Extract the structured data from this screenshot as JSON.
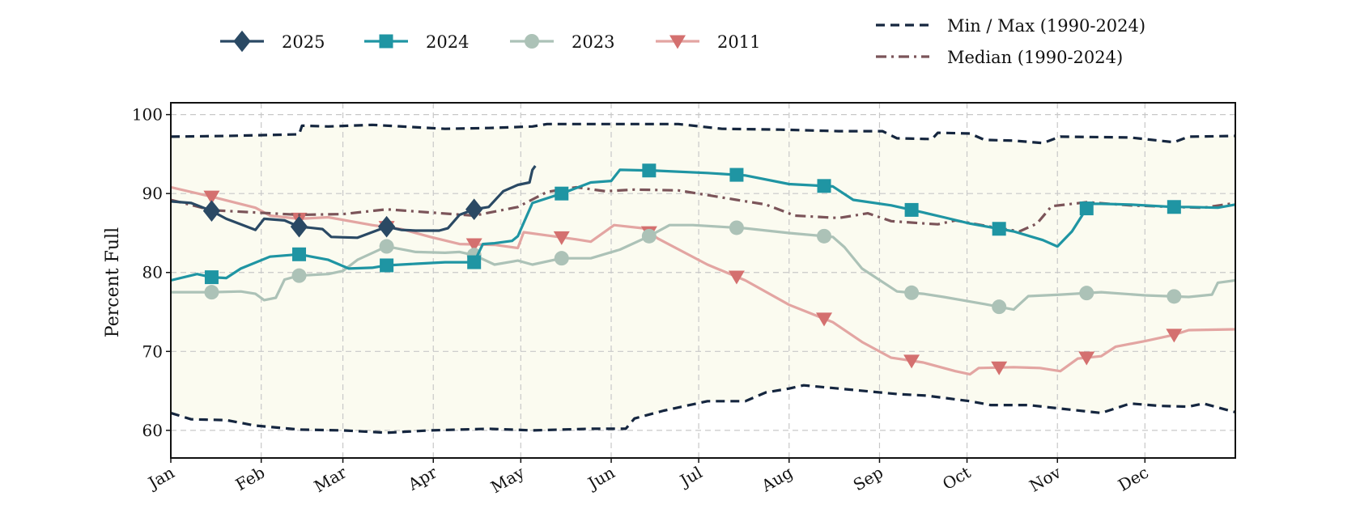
{
  "chart_data": {
    "type": "line",
    "title": "",
    "xlabel": "",
    "ylabel": "Percent Full",
    "ylim": [
      56.5,
      101.5
    ],
    "xlim": [
      1,
      366
    ],
    "grid": true,
    "legend_position": "top",
    "x_ticks": [
      {
        "label": "Jan",
        "x": 1
      },
      {
        "label": "Feb",
        "x": 32
      },
      {
        "label": "Mar",
        "x": 60
      },
      {
        "label": "Apr",
        "x": 91
      },
      {
        "label": "May",
        "x": 121
      },
      {
        "label": "Jun",
        "x": 152
      },
      {
        "label": "Jul",
        "x": 182
      },
      {
        "label": "Aug",
        "x": 213
      },
      {
        "label": "Sep",
        "x": 244
      },
      {
        "label": "Oct",
        "x": 274
      },
      {
        "label": "Nov",
        "x": 305
      },
      {
        "label": "Dec",
        "x": 335
      }
    ],
    "y_ticks": [
      60,
      70,
      80,
      90,
      100
    ],
    "band": {
      "lower_series": "min",
      "upper_series": "max",
      "color": "#fbfbf0"
    },
    "series": [
      {
        "key": "max",
        "name": "Min / Max (1990-2024)",
        "color": "#15263f",
        "style": "dashed",
        "marker": "none",
        "points": [
          [
            1,
            97.2
          ],
          [
            20,
            97.3
          ],
          [
            45,
            97.5
          ],
          [
            46,
            98.6
          ],
          [
            55,
            98.5
          ],
          [
            70,
            98.7
          ],
          [
            95,
            98.2
          ],
          [
            110,
            98.3
          ],
          [
            125,
            98.5
          ],
          [
            130,
            98.8
          ],
          [
            150,
            98.8
          ],
          [
            175,
            98.8
          ],
          [
            190,
            98.2
          ],
          [
            210,
            98.1
          ],
          [
            230,
            97.9
          ],
          [
            245,
            97.9
          ],
          [
            250,
            97.0
          ],
          [
            262,
            96.9
          ],
          [
            264,
            97.7
          ],
          [
            275,
            97.6
          ],
          [
            280,
            96.8
          ],
          [
            290,
            96.7
          ],
          [
            300,
            96.4
          ],
          [
            306,
            97.2
          ],
          [
            330,
            97.1
          ],
          [
            345,
            96.5
          ],
          [
            350,
            97.2
          ],
          [
            366,
            97.3
          ]
        ]
      },
      {
        "key": "min",
        "name": "Min / Max (1990-2024)",
        "color": "#15263f",
        "style": "dashed",
        "marker": "none",
        "points": [
          [
            1,
            62.2
          ],
          [
            8,
            61.4
          ],
          [
            20,
            61.3
          ],
          [
            30,
            60.6
          ],
          [
            45,
            60.1
          ],
          [
            60,
            60.0
          ],
          [
            75,
            59.7
          ],
          [
            90,
            60.0
          ],
          [
            110,
            60.2
          ],
          [
            125,
            60.0
          ],
          [
            145,
            60.2
          ],
          [
            157,
            60.2
          ],
          [
            160,
            61.5
          ],
          [
            170,
            62.5
          ],
          [
            185,
            63.7
          ],
          [
            198,
            63.7
          ],
          [
            205,
            64.8
          ],
          [
            213,
            65.3
          ],
          [
            218,
            65.7
          ],
          [
            230,
            65.3
          ],
          [
            250,
            64.6
          ],
          [
            260,
            64.4
          ],
          [
            275,
            63.7
          ],
          [
            282,
            63.2
          ],
          [
            295,
            63.2
          ],
          [
            310,
            62.6
          ],
          [
            320,
            62.2
          ],
          [
            330,
            63.4
          ],
          [
            340,
            63.1
          ],
          [
            350,
            63.0
          ],
          [
            355,
            63.4
          ],
          [
            366,
            62.3
          ]
        ]
      },
      {
        "key": "median",
        "name": "Median (1990-2024)",
        "color": "#7b5459",
        "style": "dashdot",
        "marker": "none",
        "points": [
          [
            1,
            89.2
          ],
          [
            15,
            87.9
          ],
          [
            30,
            87.6
          ],
          [
            45,
            87.3
          ],
          [
            60,
            87.4
          ],
          [
            75,
            88.0
          ],
          [
            90,
            87.6
          ],
          [
            105,
            87.2
          ],
          [
            120,
            88.3
          ],
          [
            130,
            90.2
          ],
          [
            140,
            90.8
          ],
          [
            150,
            90.3
          ],
          [
            160,
            90.5
          ],
          [
            175,
            90.4
          ],
          [
            185,
            89.8
          ],
          [
            195,
            89.2
          ],
          [
            205,
            88.6
          ],
          [
            215,
            87.2
          ],
          [
            230,
            86.9
          ],
          [
            240,
            87.5
          ],
          [
            248,
            86.5
          ],
          [
            260,
            86.2
          ],
          [
            264,
            86.1
          ],
          [
            270,
            86.6
          ],
          [
            282,
            85.8
          ],
          [
            292,
            85.2
          ],
          [
            298,
            86.2
          ],
          [
            303,
            88.4
          ],
          [
            315,
            88.9
          ],
          [
            330,
            88.5
          ],
          [
            345,
            88.3
          ],
          [
            355,
            88.2
          ],
          [
            366,
            88.8
          ]
        ]
      },
      {
        "key": "s2011",
        "name": "2011",
        "color": "#e3a5a2",
        "marker_color": "#d4706f",
        "style": "solid",
        "marker": "triangle-down",
        "points": [
          [
            1,
            90.8
          ],
          [
            15,
            89.6
          ],
          [
            30,
            88.2
          ],
          [
            35,
            87.2
          ],
          [
            45,
            86.8
          ],
          [
            55,
            87.0
          ],
          [
            70,
            86.0
          ],
          [
            80,
            85.5
          ],
          [
            90,
            84.5
          ],
          [
            100,
            83.6
          ],
          [
            112,
            83.5
          ],
          [
            120,
            83.1
          ],
          [
            122,
            85.1
          ],
          [
            130,
            84.7
          ],
          [
            140,
            84.2
          ],
          [
            145,
            83.9
          ],
          [
            153,
            86.0
          ],
          [
            163,
            85.6
          ],
          [
            168,
            84.3
          ],
          [
            185,
            81.0
          ],
          [
            198,
            79.0
          ],
          [
            213,
            75.9
          ],
          [
            228,
            73.7
          ],
          [
            238,
            71.2
          ],
          [
            248,
            69.2
          ],
          [
            259,
            68.6
          ],
          [
            270,
            67.5
          ],
          [
            275,
            67.1
          ],
          [
            278,
            67.9
          ],
          [
            290,
            68.0
          ],
          [
            299,
            67.9
          ],
          [
            306,
            67.5
          ],
          [
            312,
            69.1
          ],
          [
            320,
            69.4
          ],
          [
            325,
            70.6
          ],
          [
            335,
            71.3
          ],
          [
            345,
            72.1
          ],
          [
            350,
            72.7
          ],
          [
            366,
            72.8
          ]
        ]
      },
      {
        "key": "s2023",
        "name": "2023",
        "color": "#acc2b7",
        "marker_color": "#acc2b7",
        "style": "solid",
        "marker": "circle",
        "points": [
          [
            1,
            77.5
          ],
          [
            15,
            77.5
          ],
          [
            25,
            77.6
          ],
          [
            30,
            77.3
          ],
          [
            33,
            76.5
          ],
          [
            37,
            76.8
          ],
          [
            40,
            79.1
          ],
          [
            45,
            79.6
          ],
          [
            55,
            79.8
          ],
          [
            60,
            80.2
          ],
          [
            65,
            81.6
          ],
          [
            75,
            83.3
          ],
          [
            85,
            82.6
          ],
          [
            95,
            82.5
          ],
          [
            100,
            82.6
          ],
          [
            105,
            82.2
          ],
          [
            112,
            81.0
          ],
          [
            120,
            81.5
          ],
          [
            125,
            81.0
          ],
          [
            135,
            81.8
          ],
          [
            145,
            81.8
          ],
          [
            155,
            82.9
          ],
          [
            165,
            84.6
          ],
          [
            172,
            86.0
          ],
          [
            180,
            86.0
          ],
          [
            198,
            85.6
          ],
          [
            213,
            85.0
          ],
          [
            228,
            84.5
          ],
          [
            232,
            83.2
          ],
          [
            238,
            80.5
          ],
          [
            250,
            77.6
          ],
          [
            259,
            77.3
          ],
          [
            266,
            76.9
          ],
          [
            280,
            76.0
          ],
          [
            290,
            75.3
          ],
          [
            295,
            77.0
          ],
          [
            306,
            77.2
          ],
          [
            320,
            77.5
          ],
          [
            335,
            77.1
          ],
          [
            350,
            76.9
          ],
          [
            358,
            77.2
          ],
          [
            360,
            78.7
          ],
          [
            366,
            79.0
          ]
        ]
      },
      {
        "key": "s2024",
        "name": "2024",
        "color": "#1f95a3",
        "marker_color": "#1f95a3",
        "style": "solid",
        "marker": "square",
        "points": [
          [
            1,
            79.0
          ],
          [
            10,
            79.8
          ],
          [
            15,
            79.4
          ],
          [
            20,
            79.3
          ],
          [
            25,
            80.5
          ],
          [
            35,
            82.0
          ],
          [
            45,
            82.3
          ],
          [
            55,
            81.6
          ],
          [
            62,
            80.5
          ],
          [
            70,
            80.6
          ],
          [
            75,
            80.9
          ],
          [
            85,
            81.1
          ],
          [
            95,
            81.3
          ],
          [
            105,
            81.3
          ],
          [
            108,
            83.6
          ],
          [
            112,
            83.7
          ],
          [
            118,
            84.0
          ],
          [
            120,
            84.6
          ],
          [
            125,
            88.8
          ],
          [
            135,
            90.0
          ],
          [
            145,
            91.4
          ],
          [
            152,
            91.6
          ],
          [
            155,
            93.0
          ],
          [
            167,
            92.9
          ],
          [
            185,
            92.6
          ],
          [
            198,
            92.3
          ],
          [
            213,
            91.2
          ],
          [
            228,
            90.9
          ],
          [
            235,
            89.2
          ],
          [
            248,
            88.5
          ],
          [
            259,
            87.6
          ],
          [
            266,
            87.0
          ],
          [
            275,
            86.2
          ],
          [
            290,
            85.2
          ],
          [
            300,
            84.1
          ],
          [
            305,
            83.3
          ],
          [
            310,
            85.2
          ],
          [
            316,
            88.7
          ],
          [
            320,
            88.7
          ],
          [
            330,
            88.6
          ],
          [
            345,
            88.3
          ],
          [
            350,
            88.3
          ],
          [
            360,
            88.2
          ],
          [
            366,
            88.6
          ]
        ]
      },
      {
        "key": "s2025",
        "name": "2025",
        "color": "#2a4964",
        "marker_color": "#2a4964",
        "style": "solid",
        "marker": "diamond",
        "points": [
          [
            1,
            89.0
          ],
          [
            8,
            88.8
          ],
          [
            15,
            87.8
          ],
          [
            20,
            86.8
          ],
          [
            25,
            86.1
          ],
          [
            30,
            85.4
          ],
          [
            33,
            86.8
          ],
          [
            40,
            86.6
          ],
          [
            45,
            85.8
          ],
          [
            48,
            85.7
          ],
          [
            53,
            85.5
          ],
          [
            56,
            84.5
          ],
          [
            65,
            84.4
          ],
          [
            70,
            85.1
          ],
          [
            75,
            85.8
          ],
          [
            80,
            85.4
          ],
          [
            85,
            85.3
          ],
          [
            88,
            85.3
          ],
          [
            93,
            85.3
          ],
          [
            96,
            85.6
          ],
          [
            100,
            87.3
          ],
          [
            105,
            88.0
          ],
          [
            110,
            88.3
          ],
          [
            115,
            90.3
          ],
          [
            120,
            91.1
          ],
          [
            124,
            91.4
          ],
          [
            125,
            93.0
          ],
          [
            126,
            93.5
          ]
        ]
      }
    ],
    "legend": {
      "left": [
        "2025",
        "2024",
        "2023",
        "2011"
      ],
      "right": [
        "Min / Max (1990-2024)",
        "Median (1990-2024)"
      ]
    }
  }
}
